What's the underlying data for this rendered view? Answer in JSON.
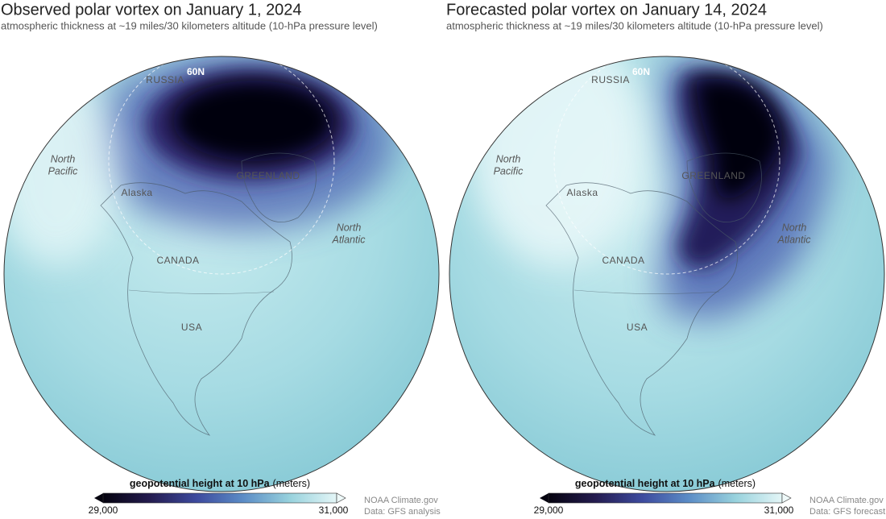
{
  "panels": [
    {
      "title": "Observed polar vortex on January 1, 2024",
      "subtitle": "atmospheric thickness at ~19 miles/30 kilometers altitude (10-hPa pressure level)",
      "map_labels": {
        "latitude": "60N",
        "russia": "RUSSIA",
        "north_pacific": [
          "North",
          "Pacific"
        ],
        "alaska": "Alaska",
        "greenland": "GREENLAND",
        "north_atlantic": [
          "North",
          "Atlantic"
        ],
        "canada": "CANADA",
        "usa": "USA"
      },
      "colorbar": {
        "label": "geopotential height at 10 hPa",
        "unit": "(meters)",
        "min": "29,000",
        "max": "31,000"
      },
      "credit": [
        "NOAA Climate.gov",
        "Data: GFS analysis"
      ]
    },
    {
      "title": "Forecasted polar vortex on January 14, 2024",
      "subtitle": "atmospheric thickness at ~19 miles/30 kilometers altitude (10-hPa pressure level)",
      "map_labels": {
        "latitude": "60N",
        "russia": "RUSSIA",
        "north_pacific": [
          "North",
          "Pacific"
        ],
        "alaska": "Alaska",
        "greenland": "GREENLAND",
        "north_atlantic": [
          "North",
          "Atlantic"
        ],
        "canada": "CANADA",
        "usa": "USA"
      },
      "colorbar": {
        "label": "geopotential height at 10 hPa",
        "unit": "(meters)",
        "min": "29,000",
        "max": "31,000"
      },
      "credit": [
        "NOAA Climate.gov",
        "Data: GFS forecast"
      ]
    }
  ]
}
